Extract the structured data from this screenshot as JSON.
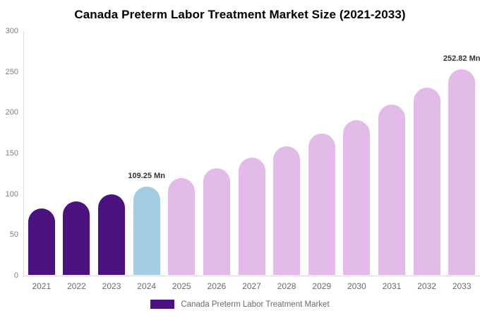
{
  "chart_data": {
    "type": "bar",
    "title": "Canada Preterm Labor Treatment Market Size (2021-2033)",
    "xlabel": "",
    "ylabel": "",
    "categories": [
      "2021",
      "2022",
      "2023",
      "2024",
      "2025",
      "2026",
      "2027",
      "2028",
      "2029",
      "2030",
      "2031",
      "2032",
      "2033"
    ],
    "series": [
      {
        "name": "Canada Preterm Labor Treatment Market",
        "values": [
          82.6,
          90.7,
          99.5,
          109.25,
          119.9,
          131.6,
          144.5,
          158.6,
          174.1,
          191.1,
          209.8,
          230.3,
          252.82
        ]
      }
    ],
    "unit": "Mn",
    "ylim": [
      0,
      300
    ],
    "yticks": [
      0,
      50,
      100,
      150,
      200,
      250,
      300
    ],
    "grid": "off",
    "legend_position": "bottom-center",
    "bar_roles": [
      "historical",
      "historical",
      "historical",
      "base_year",
      "forecast",
      "forecast",
      "forecast",
      "forecast",
      "forecast",
      "forecast",
      "forecast",
      "forecast",
      "forecast"
    ],
    "palette": {
      "historical": "#4b1280",
      "base_year": "#a5cde1",
      "forecast": "#e3bbe8"
    },
    "annotations": [
      {
        "category": "2024",
        "text": "109.25 Mn"
      },
      {
        "category": "2033",
        "text": "252.82 Mn"
      }
    ]
  },
  "legend": {
    "label": "Canada Preterm Labor Treatment Market",
    "swatch_color": "#4b1280"
  },
  "colors": {
    "background": "#ffffff",
    "axis_line": "#d9d9d9",
    "y_tick_text": "#7f7f7f",
    "x_tick_text": "#6b6b6b",
    "annotation_text": "#333333",
    "title_text": "#000000"
  }
}
